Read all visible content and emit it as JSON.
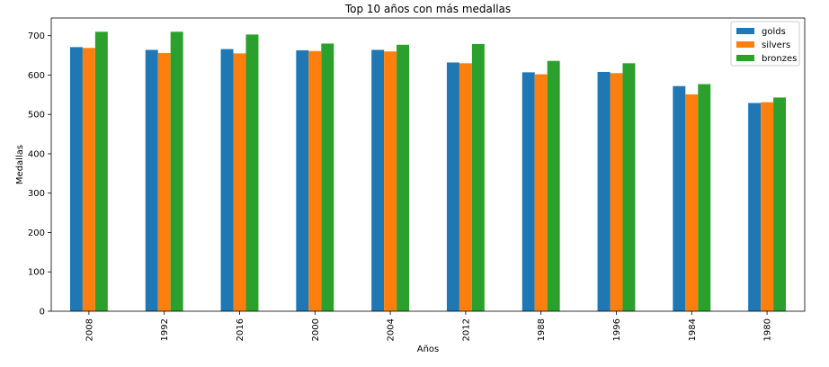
{
  "chart_data": {
    "type": "bar",
    "title": "Top 10 años con más medallas",
    "xlabel": "Años",
    "ylabel": "Medallas",
    "categories": [
      "2008",
      "1992",
      "2016",
      "2000",
      "2004",
      "2012",
      "1988",
      "1996",
      "1984",
      "1980"
    ],
    "series": [
      {
        "name": "golds",
        "color": "#1f77b4",
        "values": [
          671,
          664,
          666,
          663,
          664,
          632,
          607,
          608,
          572,
          529
        ]
      },
      {
        "name": "silvers",
        "color": "#ff7f0e",
        "values": [
          669,
          656,
          655,
          661,
          660,
          630,
          602,
          605,
          551,
          531
        ]
      },
      {
        "name": "bronzes",
        "color": "#2ca02c",
        "values": [
          710,
          710,
          703,
          680,
          677,
          679,
          636,
          630,
          577,
          543
        ]
      }
    ],
    "ylim": [
      0,
      745
    ],
    "yticks": [
      0,
      100,
      200,
      300,
      400,
      500,
      600,
      700
    ],
    "legend_position": "top-right",
    "grid": false
  }
}
